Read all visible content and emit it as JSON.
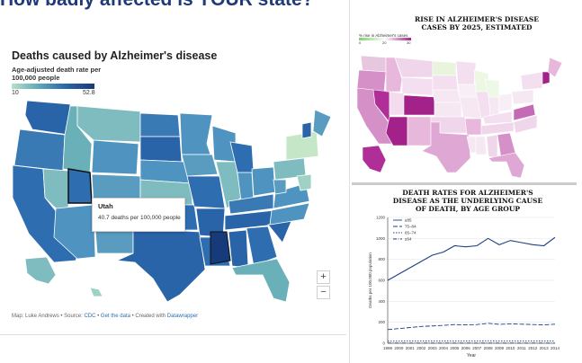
{
  "headline": "How badly affected is YOUR state?",
  "left_map": {
    "title": "Deaths caused by Alzheimer's disease",
    "legend_label": "Age-adjusted death rate per 100,000 people",
    "legend_min": "10",
    "legend_max": "52.8",
    "colors": {
      "low": "#b8e0c8",
      "mid": "#4f93c0",
      "high": "#173a7a"
    },
    "tooltip": {
      "state": "Utah",
      "value": "40.7 deaths per 100,000 people"
    },
    "zoom_in": "+",
    "zoom_out": "−",
    "credits": {
      "prefix": "Map: Luke Andrews • Source: ",
      "source": "CDC",
      "sep1": " • ",
      "get_data": "Get the data",
      "sep2": " • Created with ",
      "tool": "Datawrapper"
    }
  },
  "rise_map": {
    "title": "RISE IN ALZHEIMER'S DISEASE CASES BY 2025, ESTIMATED",
    "legend_label": "% rise in Alzheimer's cases",
    "ticks": [
      "0",
      "20",
      "30"
    ],
    "colors": {
      "low": "#7fcf6a",
      "high": "#a3228a"
    }
  },
  "chart_data": {
    "type": "line",
    "title": "DEATH RATES FOR ALZHEIMER'S DISEASE AS THE UNDERLYING CAUSE OF DEATH, BY AGE GROUP",
    "xlabel": "Year",
    "ylabel": "Deaths per 100,000 population",
    "x": [
      "1999",
      "2000",
      "2001",
      "2002",
      "2003",
      "2004",
      "2005",
      "2006",
      "2007",
      "2008",
      "2009",
      "2010",
      "2011",
      "2012",
      "2013",
      "2014"
    ],
    "ylim": [
      0,
      1200
    ],
    "yticks": [
      "0",
      "200",
      "400",
      "600",
      "800",
      "1000",
      "1200"
    ],
    "series": [
      {
        "name": "≥85",
        "values": [
          600,
          660,
          720,
          780,
          840,
          870,
          930,
          920,
          930,
          1000,
          940,
          980,
          960,
          940,
          930,
          1010
        ]
      },
      {
        "name": "75–84",
        "values": [
          130,
          140,
          150,
          160,
          165,
          170,
          178,
          175,
          178,
          190,
          180,
          185,
          182,
          178,
          175,
          182
        ]
      },
      {
        "name": "65–74",
        "values": [
          20,
          20,
          21,
          21,
          22,
          22,
          22,
          22,
          22,
          23,
          22,
          22,
          22,
          22,
          21,
          22
        ]
      },
      {
        "name": "≤64",
        "values": [
          2,
          2,
          2,
          2,
          2,
          2,
          2,
          2,
          2,
          2,
          2,
          2,
          2,
          2,
          2,
          2
        ]
      }
    ]
  }
}
